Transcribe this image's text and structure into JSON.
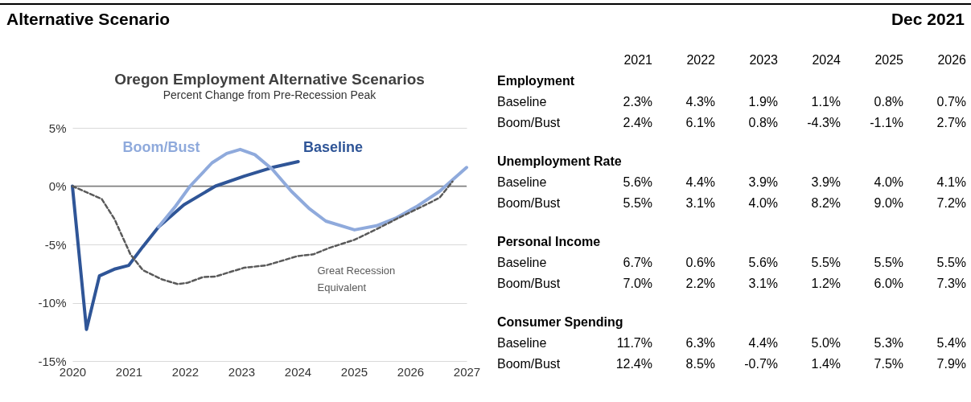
{
  "chart_data": [
    {
      "type": "line",
      "title": "Oregon Employment Alternative Scenarios",
      "subtitle": "Percent Change from Pre-Recession Peak",
      "xlim": [
        2020,
        2027
      ],
      "xticks": [
        2020,
        2021,
        2022,
        2023,
        2024,
        2025,
        2026,
        2027
      ],
      "ylim": [
        -15,
        5
      ],
      "yticks": [
        {
          "value": -15,
          "label": "-15%"
        },
        {
          "value": -10,
          "label": "-10%"
        },
        {
          "value": -5,
          "label": "-5%"
        },
        {
          "value": 0,
          "label": "0%"
        },
        {
          "value": 5,
          "label": "5%"
        }
      ],
      "grid": "y",
      "ref_lines": [
        {
          "axis": "y",
          "value": 0,
          "color": "#7f7f7f"
        }
      ],
      "series": [
        {
          "name": "Baseline",
          "color": "#2f5597",
          "x": [
            2020.0,
            2020.25,
            2020.48,
            2020.76,
            2021.0,
            2021.25,
            2021.53,
            2021.98,
            2022.54,
            2023.05,
            2023.55,
            2024.01
          ],
          "values": [
            0,
            -12.3,
            -7.7,
            -7.1,
            -6.8,
            -5.2,
            -3.5,
            -1.6,
            0,
            0.85,
            1.6,
            2.1
          ]
        },
        {
          "name": "Boom/Bust",
          "color": "#8faadc",
          "x": [
            2021.53,
            2021.82,
            2022.09,
            2022.48,
            2022.74,
            2022.98,
            2023.24,
            2023.55,
            2023.89,
            2024.2,
            2024.5,
            2025.01,
            2025.4,
            2025.74,
            2026.13,
            2026.52,
            2027.0
          ],
          "values": [
            -3.5,
            -1.8,
            0,
            2.0,
            2.8,
            3.15,
            2.7,
            1.45,
            -0.45,
            -1.9,
            -3.0,
            -3.75,
            -3.4,
            -2.75,
            -1.7,
            -0.45,
            1.6
          ]
        },
        {
          "name": "Great Recession Equivalent",
          "color": "#595959",
          "line_style": "dashed",
          "x": [
            2020.0,
            2020.52,
            2020.75,
            2021.03,
            2021.25,
            2021.59,
            2021.87,
            2022.04,
            2022.32,
            2022.54,
            2023.05,
            2023.44,
            2024.0,
            2024.28,
            2024.56,
            2025.01,
            2025.4,
            2025.74,
            2026.19,
            2026.52,
            2026.75
          ],
          "values": [
            0,
            -1.1,
            -2.85,
            -5.85,
            -7.2,
            -8.0,
            -8.4,
            -8.3,
            -7.8,
            -7.75,
            -7.0,
            -6.8,
            -6.0,
            -5.85,
            -5.3,
            -4.6,
            -3.7,
            -2.85,
            -1.8,
            -1.0,
            0.4
          ]
        }
      ]
    },
    {
      "type": "other",
      "title": "Alternative Scenario",
      "annotations": [
        "Dec 2021"
      ]
    },
    {
      "type": "heatmap",
      "title": "Employment",
      "categories": [
        "2021",
        "2022",
        "2023",
        "2024",
        "2025",
        "2026"
      ],
      "y_categories": [
        "Baseline",
        "Boom/Bust"
      ],
      "cells": [
        [
          2.3,
          4.3,
          1.9,
          1.1,
          0.8,
          0.7
        ],
        [
          2.4,
          6.1,
          0.8,
          -4.3,
          -1.1,
          2.7
        ]
      ],
      "cell_labels": [
        [
          "2.3%",
          "4.3%",
          "1.9%",
          "1.1%",
          "0.8%",
          "0.7%"
        ],
        [
          "2.4%",
          "6.1%",
          "0.8%",
          "-4.3%",
          "-1.1%",
          "2.7%"
        ]
      ]
    },
    {
      "type": "heatmap",
      "title": "Unemployment Rate",
      "categories": [
        "2021",
        "2022",
        "2023",
        "2024",
        "2025",
        "2026"
      ],
      "y_categories": [
        "Baseline",
        "Boom/Bust"
      ],
      "tick_labels": "y",
      "cells": [
        [
          5.6,
          4.4,
          3.9,
          3.9,
          4.0,
          4.1
        ],
        [
          5.5,
          3.1,
          4.0,
          8.2,
          9.0,
          7.2
        ]
      ],
      "cell_labels": [
        [
          "5.6%",
          "4.4%",
          "3.9%",
          "3.9%",
          "4.0%",
          "4.1%"
        ],
        [
          "5.5%",
          "3.1%",
          "4.0%",
          "8.2%",
          "9.0%",
          "7.2%"
        ]
      ]
    },
    {
      "type": "heatmap",
      "title": "Personal Income",
      "categories": [
        "2021",
        "2022",
        "2023",
        "2024",
        "2025",
        "2026"
      ],
      "y_categories": [
        "Baseline",
        "Boom/Bust"
      ],
      "tick_labels": "y",
      "cells": [
        [
          6.7,
          0.6,
          5.6,
          5.5,
          5.5,
          5.5
        ],
        [
          7.0,
          2.2,
          3.1,
          1.2,
          6.0,
          7.3
        ]
      ],
      "cell_labels": [
        [
          "6.7%",
          "0.6%",
          "5.6%",
          "5.5%",
          "5.5%",
          "5.5%"
        ],
        [
          "7.0%",
          "2.2%",
          "3.1%",
          "1.2%",
          "6.0%",
          "7.3%"
        ]
      ]
    },
    {
      "type": "heatmap",
      "title": "Consumer Spending",
      "categories": [
        "2021",
        "2022",
        "2023",
        "2024",
        "2025",
        "2026"
      ],
      "y_categories": [
        "Baseline",
        "Boom/Bust"
      ],
      "tick_labels": "y",
      "cells": [
        [
          11.7,
          6.3,
          4.4,
          5.0,
          5.3,
          5.4
        ],
        [
          12.4,
          8.5,
          -0.7,
          1.4,
          7.5,
          7.9
        ]
      ],
      "cell_labels": [
        [
          "11.7%",
          "6.3%",
          "4.4%",
          "5.0%",
          "5.3%",
          "5.4%"
        ],
        [
          "12.4%",
          "8.5%",
          "-0.7%",
          "1.4%",
          "7.5%",
          "7.9%"
        ]
      ]
    }
  ]
}
